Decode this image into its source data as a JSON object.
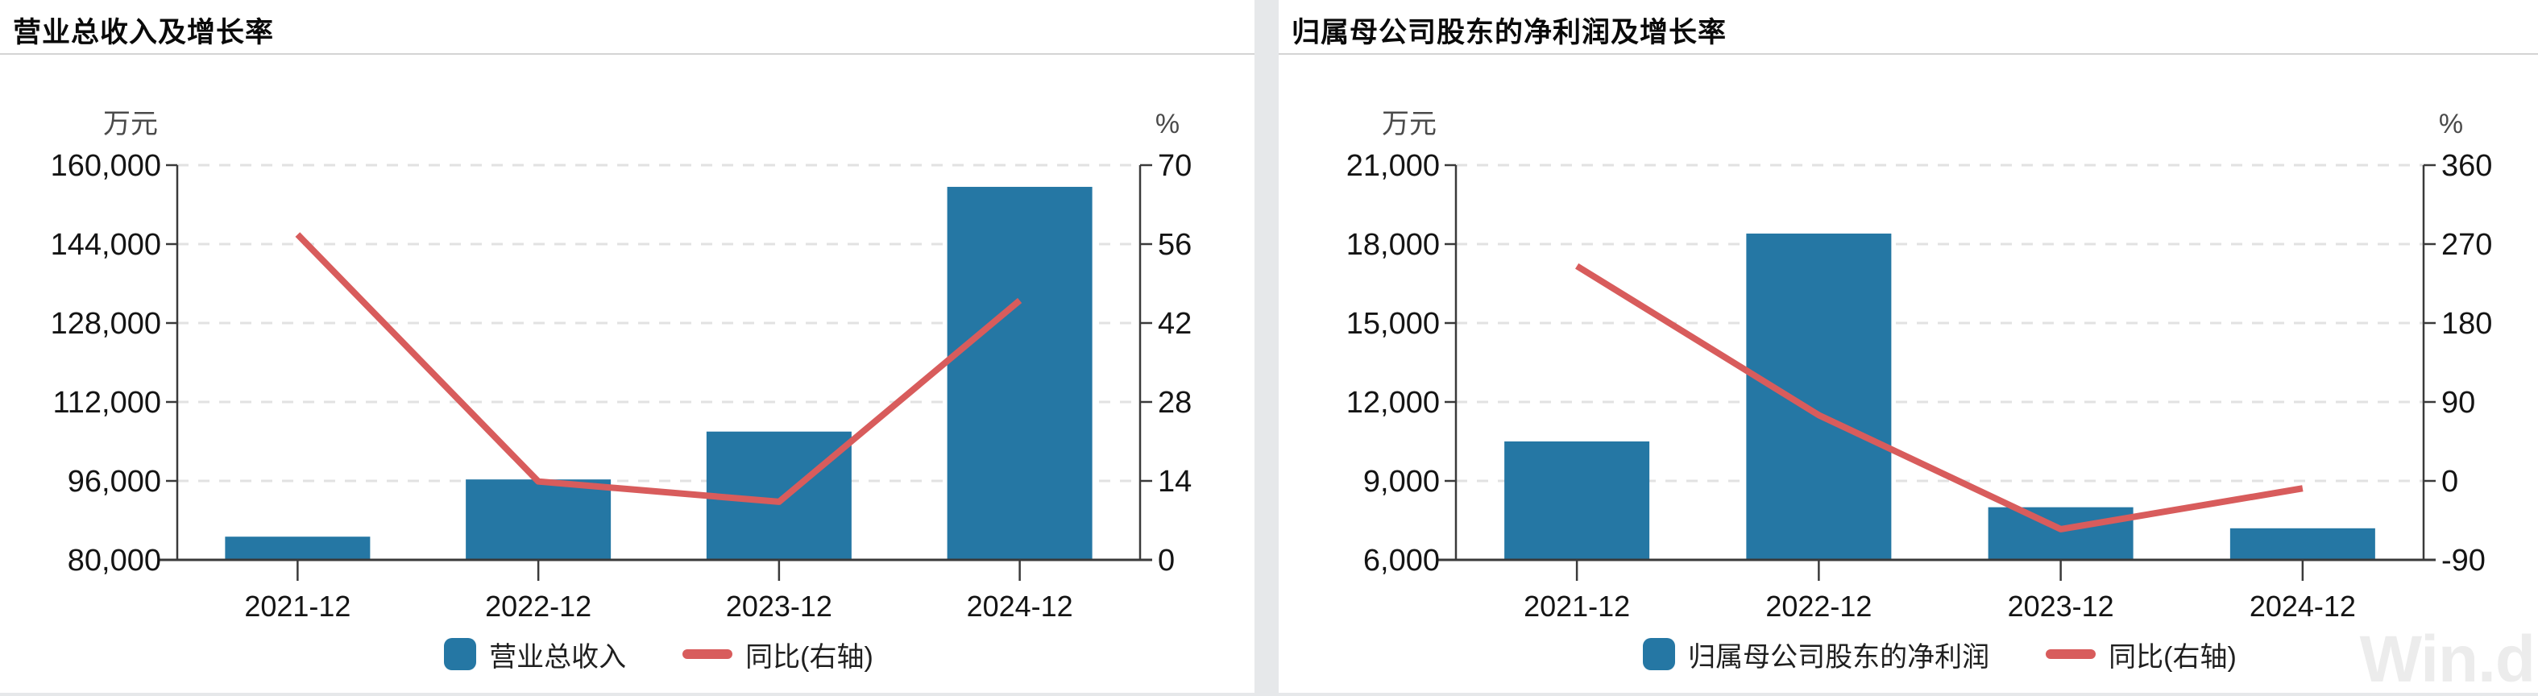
{
  "watermark": "Win.d",
  "colors": {
    "bar": "#2577a4",
    "line": "#d85c5c",
    "grid": "#e2e2e2",
    "axis": "#3a3a3a",
    "tick_text": "#141414",
    "unit_text": "#4a4a4a",
    "title": "#0a0a0a",
    "divider": "#d4d4d4",
    "gap": "#e6e8ea",
    "background": "#ffffff",
    "watermark_color": "#ececec"
  },
  "chart_data": [
    {
      "type": "bar+line",
      "title": "营业总收入及增长率",
      "categories": [
        "2021-12",
        "2022-12",
        "2023-12",
        "2024-12"
      ],
      "series": [
        {
          "name": "营业总收入",
          "type": "bar",
          "axis": "left",
          "unit": "万元",
          "values": [
            84700,
            96300,
            106000,
            155600
          ]
        },
        {
          "name": "同比(右轴)",
          "type": "line",
          "axis": "right",
          "unit": "%",
          "values": [
            57.7,
            13.9,
            10.3,
            46.0
          ]
        }
      ],
      "left_axis": {
        "label": "万元",
        "min": 80000,
        "max": 160000,
        "step": 16000,
        "ticks": [
          "80,000",
          "96,000",
          "112,000",
          "128,000",
          "144,000",
          "160,000"
        ]
      },
      "right_axis": {
        "label": "%",
        "min": 0,
        "max": 70,
        "step": 14,
        "ticks": [
          "0",
          "14",
          "28",
          "42",
          "56",
          "70"
        ]
      },
      "grid": true,
      "legend_position": "bottom"
    },
    {
      "type": "bar+line",
      "title": "归属母公司股东的净利润及增长率",
      "categories": [
        "2021-12",
        "2022-12",
        "2023-12",
        "2024-12"
      ],
      "series": [
        {
          "name": "归属母公司股东的净利润",
          "type": "bar",
          "axis": "left",
          "unit": "万元",
          "values": [
            10500,
            18400,
            8000,
            7200
          ]
        },
        {
          "name": "同比(右轴)",
          "type": "line",
          "axis": "right",
          "unit": "%",
          "values": [
            245.0,
            75.0,
            -55.0,
            -8.5
          ]
        }
      ],
      "left_axis": {
        "label": "万元",
        "min": 6000,
        "max": 21000,
        "step": 3000,
        "ticks": [
          "6,000",
          "9,000",
          "12,000",
          "15,000",
          "18,000",
          "21,000"
        ]
      },
      "right_axis": {
        "label": "%",
        "min": -90,
        "max": 360,
        "step": 90,
        "ticks": [
          "-90",
          "0",
          "90",
          "180",
          "270",
          "360"
        ]
      },
      "grid": true,
      "legend_position": "bottom"
    }
  ]
}
